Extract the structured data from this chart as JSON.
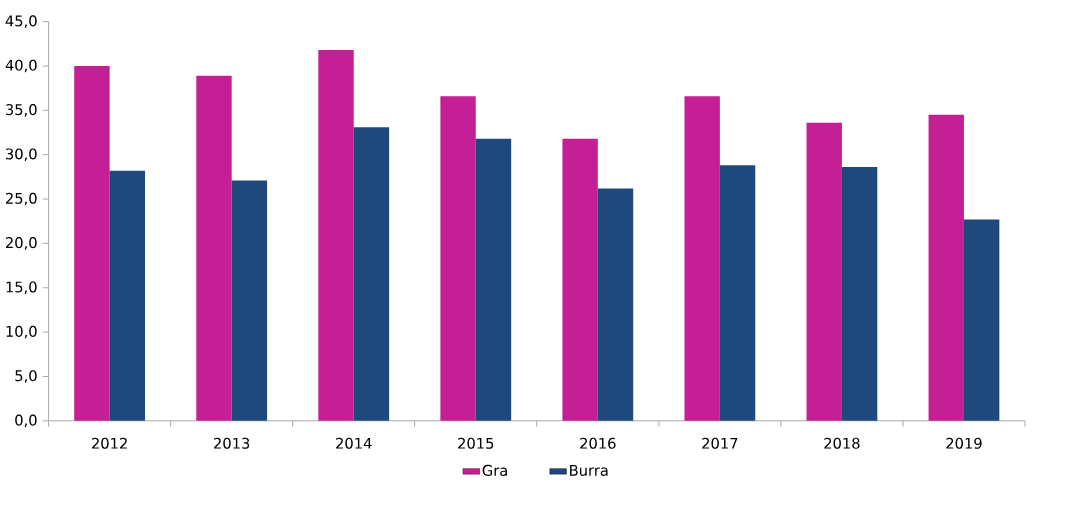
{
  "chart_data": {
    "type": "bar",
    "categories": [
      "2012",
      "2013",
      "2014",
      "2015",
      "2016",
      "2017",
      "2018",
      "2019"
    ],
    "series": [
      {
        "name": "Gra",
        "color": "#c51f96",
        "values": [
          40.0,
          38.9,
          41.8,
          36.6,
          31.8,
          36.6,
          33.6,
          34.5
        ]
      },
      {
        "name": "Burra",
        "color": "#1f497d",
        "values": [
          28.2,
          27.1,
          33.1,
          31.8,
          26.2,
          28.8,
          28.6,
          22.7
        ]
      }
    ],
    "ylim": [
      0,
      45
    ],
    "yticks": [
      {
        "value": 0,
        "label": "0,0"
      },
      {
        "value": 5,
        "label": "5,0"
      },
      {
        "value": 10,
        "label": "10,0"
      },
      {
        "value": 15,
        "label": "15,0"
      },
      {
        "value": 20,
        "label": "20,0"
      },
      {
        "value": 25,
        "label": "25,0"
      },
      {
        "value": 30,
        "label": "30,0"
      },
      {
        "value": 35,
        "label": "35,0"
      },
      {
        "value": 40,
        "label": "40,0"
      },
      {
        "value": 45,
        "label": "45,0"
      }
    ],
    "grid": false,
    "legend": "bottom"
  }
}
